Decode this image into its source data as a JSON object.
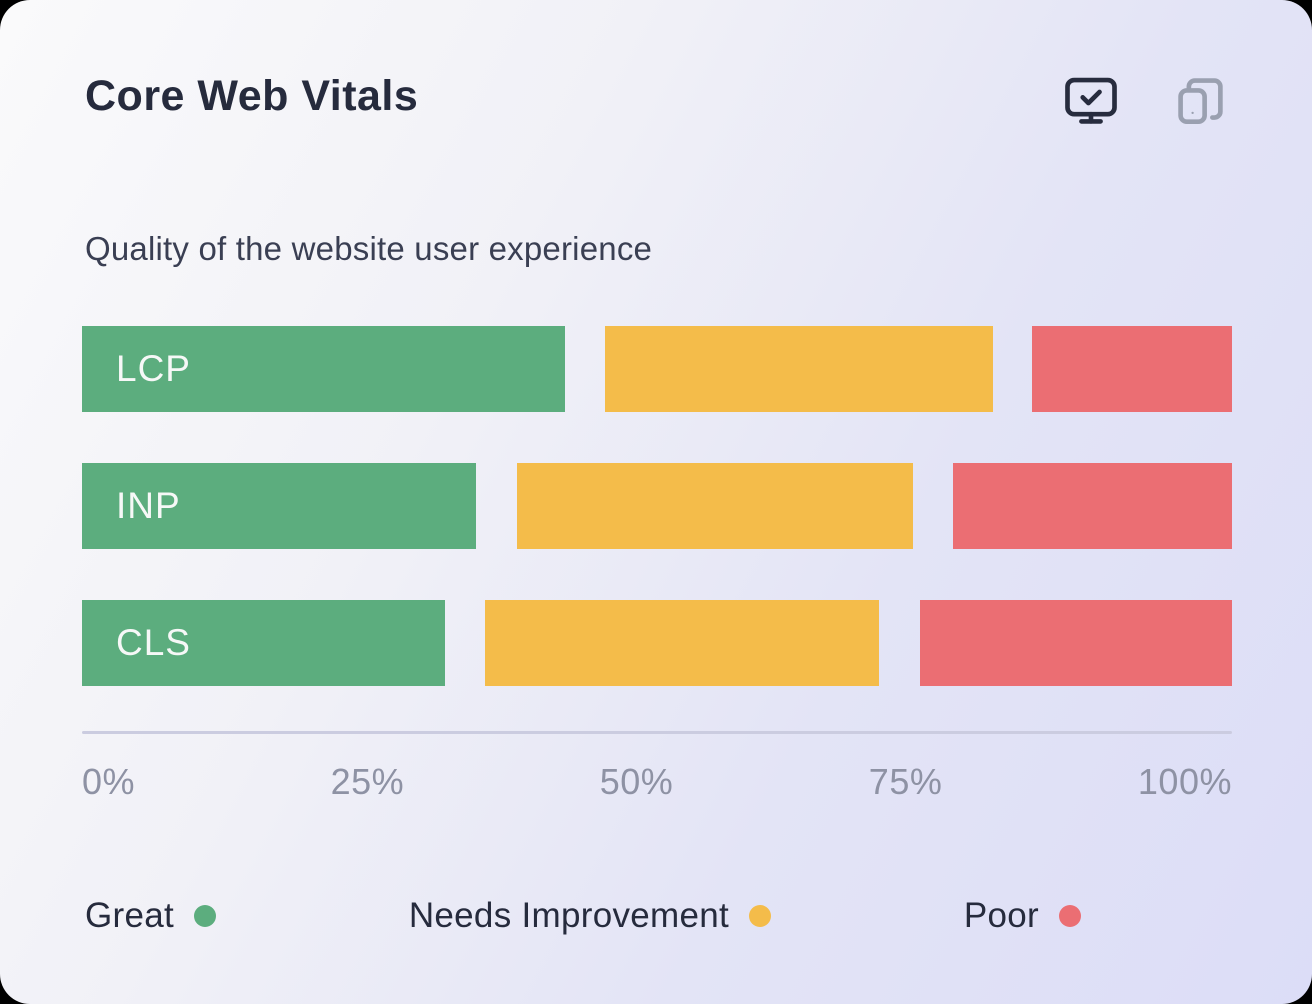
{
  "card": {
    "title": "Core Web Vitals",
    "subtitle": "Quality of the website user experience"
  },
  "header_icons": [
    {
      "name": "desktop-check-icon",
      "state": "active"
    },
    {
      "name": "mobile-devices-icon",
      "state": "inactive"
    }
  ],
  "colors": {
    "great": "#5cad7e",
    "needs_improvement": "#f4bc4a",
    "poor": "#eb6e73",
    "title_text": "#262b3d",
    "subtitle_text": "#3a3f53",
    "tick_text": "#8e92a4",
    "axis_line": "#cbcce0",
    "bar_label_text": "#f6f8f7",
    "icon_active": "#272c3e",
    "icon_inactive": "#9aa0b0",
    "card_bg_start": "#fafafb",
    "card_bg_end": "#dcddf7"
  },
  "chart_data": {
    "type": "bar",
    "orientation": "horizontal",
    "stacked": true,
    "unit": "percent",
    "title": "Core Web Vitals",
    "xlabel": "",
    "ylabel": "",
    "xlim": [
      0,
      100
    ],
    "x_ticks": [
      "0%",
      "25%",
      "50%",
      "75%",
      "100%"
    ],
    "grid": false,
    "legend_position": "bottom",
    "segment_gap_percent": 3.5,
    "categories": [
      "LCP",
      "INP",
      "CLS"
    ],
    "series": [
      {
        "name": "Great",
        "color_key": "great",
        "values": [
          42,
          34.5,
          31.5
        ]
      },
      {
        "name": "Needs Improvement",
        "color_key": "needs_improvement",
        "values": [
          34,
          34.5,
          34.5
        ]
      },
      {
        "name": "Poor",
        "color_key": "poor",
        "values": [
          17.5,
          24.5,
          27
        ]
      }
    ],
    "rows": [
      {
        "label": "LCP",
        "segments": [
          {
            "key": "great",
            "start": 0,
            "width": 42.0
          },
          {
            "key": "needs_improvement",
            "start": 45.5,
            "width": 33.7
          },
          {
            "key": "poor",
            "start": 82.6,
            "width": 17.4
          }
        ]
      },
      {
        "label": "INP",
        "segments": [
          {
            "key": "great",
            "start": 0,
            "width": 34.3
          },
          {
            "key": "needs_improvement",
            "start": 37.8,
            "width": 34.5
          },
          {
            "key": "poor",
            "start": 75.7,
            "width": 24.3
          }
        ]
      },
      {
        "label": "CLS",
        "segments": [
          {
            "key": "great",
            "start": 0,
            "width": 31.6
          },
          {
            "key": "needs_improvement",
            "start": 35.0,
            "width": 34.3
          },
          {
            "key": "poor",
            "start": 72.9,
            "width": 27.1
          }
        ]
      }
    ]
  },
  "legend": {
    "items": [
      {
        "label": "Great",
        "color_key": "great"
      },
      {
        "label": "Needs Improvement",
        "color_key": "needs_improvement"
      },
      {
        "label": "Poor",
        "color_key": "poor"
      }
    ]
  }
}
